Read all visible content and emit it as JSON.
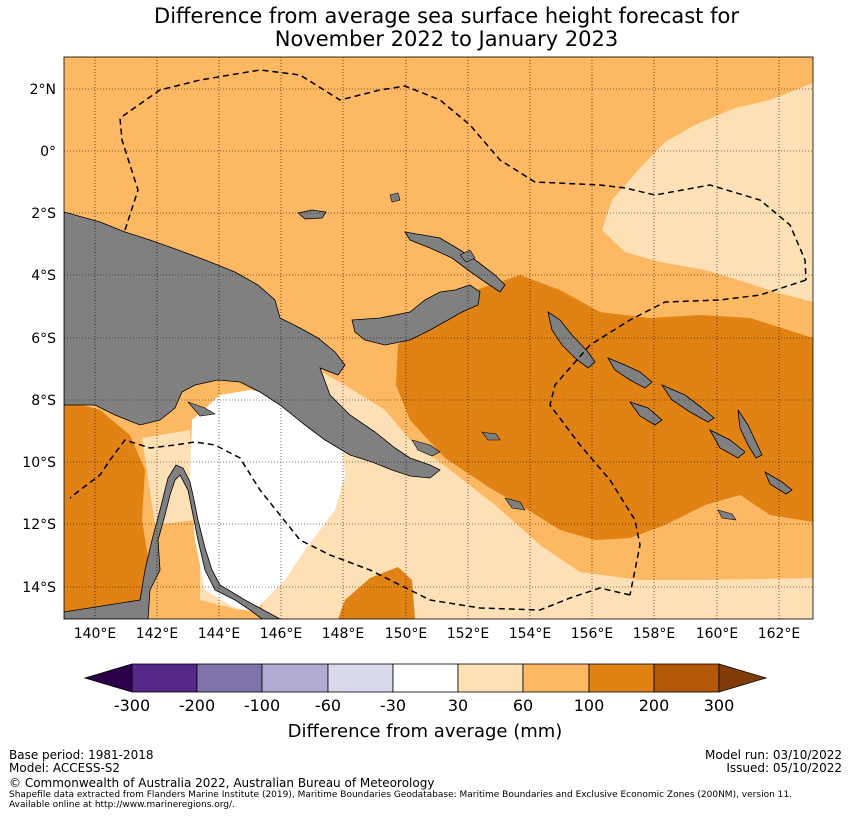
{
  "title": {
    "line1": "Difference from average sea surface height forecast for",
    "line2": "November 2022 to January 2023"
  },
  "map": {
    "lat_labels": [
      "2°N",
      "0°",
      "2°S",
      "4°S",
      "6°S",
      "8°S",
      "10°S",
      "12°S",
      "14°S"
    ],
    "lon_labels": [
      "140°E",
      "142°E",
      "144°E",
      "146°E",
      "148°E",
      "150°E",
      "152°E",
      "154°E",
      "156°E",
      "158°E",
      "160°E",
      "162°E"
    ],
    "colors": {
      "land": "#808080",
      "band_30_60": "#fee0b6",
      "band_60_100": "#fdb863",
      "band_100_200": "#e08214",
      "neutral": "#ffffff"
    }
  },
  "colorbar": {
    "label": "Difference from average (mm)",
    "ticks": [
      "-300",
      "-200",
      "-100",
      "-60",
      "-30",
      "30",
      "60",
      "100",
      "200",
      "300"
    ],
    "colors": [
      "#2d004b",
      "#542788",
      "#8073ac",
      "#b2abd2",
      "#d8daeb",
      "#ffffff",
      "#fee0b6",
      "#fdb863",
      "#e08214",
      "#b35806",
      "#7f3b08"
    ]
  },
  "footer": {
    "base_period": "Base period: 1981-2018",
    "model": "Model: ACCESS-S2",
    "model_run": "Model run: 03/10/2022",
    "issued": "Issued: 05/10/2022",
    "copyright": "© Commonwealth of Australia 2022, Australian Bureau of Meteorology",
    "shapefile_line1": "Shapefile data extracted from Flanders Marine Institute (2019), Maritime Boundaries Geodatabase: Maritime Boundaries and Exclusive Economic Zones (200NM), version 11.",
    "shapefile_line2": "Available online at http://www.marineregions.org/."
  }
}
